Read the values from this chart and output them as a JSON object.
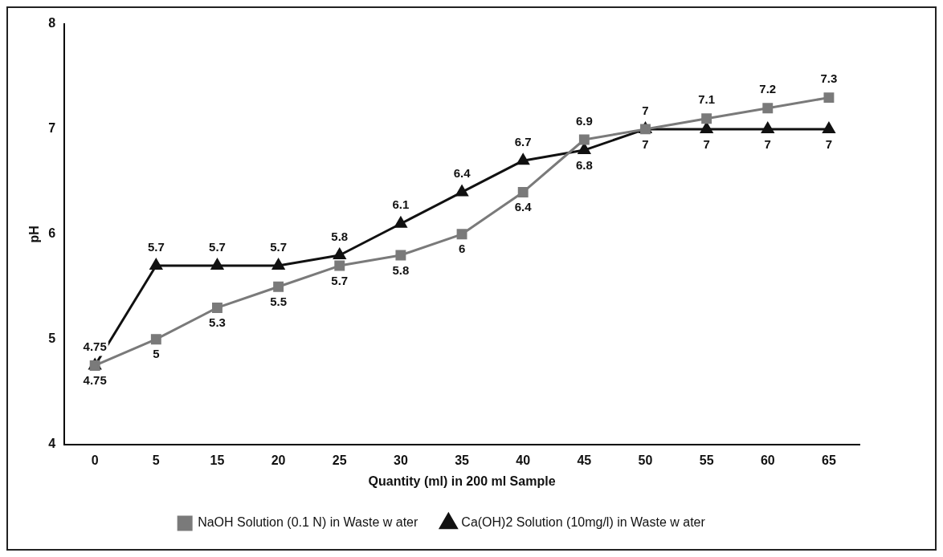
{
  "chart_data": {
    "type": "line",
    "xlabel": "Quantity (ml) in 200 ml Sample",
    "ylabel": "pH",
    "categories": [
      "0",
      "5",
      "15",
      "20",
      "25",
      "30",
      "35",
      "40",
      "45",
      "50",
      "55",
      "60",
      "65"
    ],
    "series": [
      {
        "name": "NaOH Solution (0.1 N) in Waste w ater",
        "color": "#7a7a7a",
        "marker": "square",
        "values": [
          4.75,
          5,
          5.3,
          5.5,
          5.7,
          5.8,
          6,
          6.4,
          6.9,
          7,
          7.1,
          7.2,
          7.3
        ]
      },
      {
        "name": "Ca(OH)2 Solution (10mg/l) in Waste w ater",
        "color": "#111111",
        "marker": "triangle",
        "values": [
          4.75,
          5.7,
          5.7,
          5.7,
          5.8,
          6.1,
          6.4,
          6.7,
          6.8,
          7,
          7,
          7,
          7
        ]
      }
    ],
    "ylim": [
      4,
      8
    ],
    "yticks": [
      4,
      5,
      6,
      7,
      8
    ],
    "grid": false,
    "legend": "bottom",
    "data_labels": true,
    "line_style": "solid"
  }
}
